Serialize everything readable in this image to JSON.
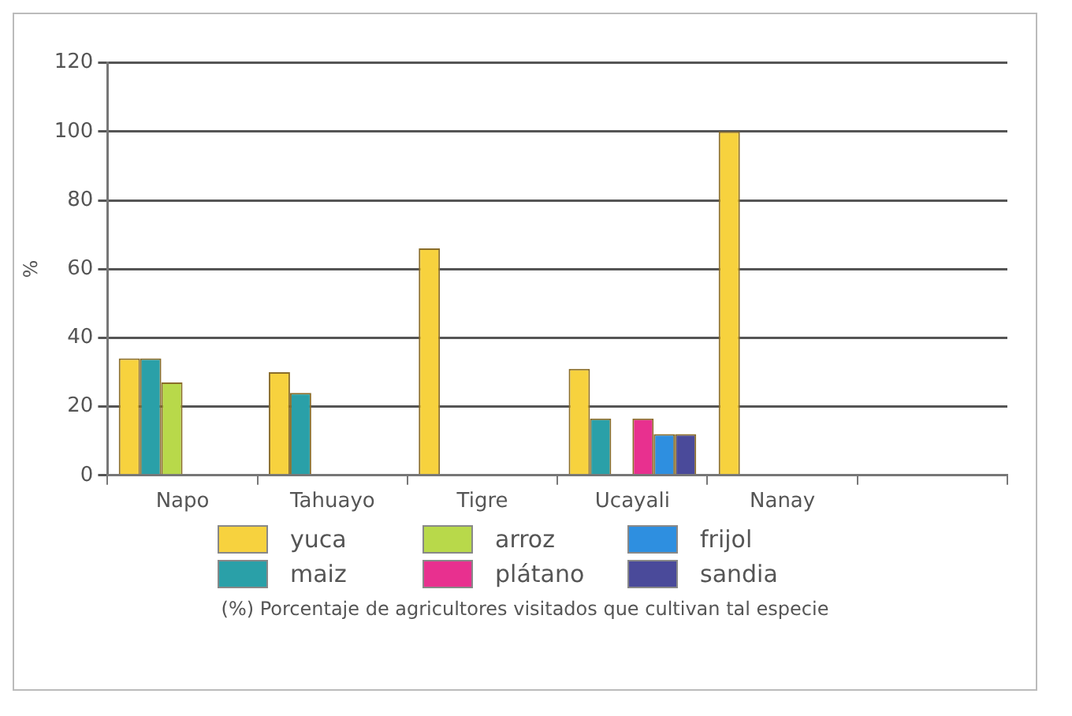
{
  "chart_data": {
    "type": "bar",
    "categories": [
      "Napo",
      "Tahuayo",
      "Tigre",
      "Ucayali",
      "Nanay",
      null
    ],
    "series": [
      {
        "name": "yuca",
        "color": "#f7d23e",
        "values": [
          34,
          30,
          66,
          31,
          100,
          null
        ]
      },
      {
        "name": "maiz",
        "color": "#2aa0a8",
        "values": [
          34,
          24,
          null,
          16.5,
          null,
          null
        ]
      },
      {
        "name": "arroz",
        "color": "#b8d94a",
        "values": [
          27,
          null,
          null,
          null,
          null,
          null
        ]
      },
      {
        "name": "plátano",
        "color": "#e8308f",
        "values": [
          null,
          null,
          null,
          16.5,
          null,
          null
        ]
      },
      {
        "name": "frijol",
        "color": "#2e8fe0",
        "values": [
          null,
          null,
          null,
          12,
          null,
          null
        ]
      },
      {
        "name": "sandia",
        "color": "#4a4a9a",
        "values": [
          null,
          null,
          null,
          12,
          null,
          null
        ]
      }
    ],
    "ylabel": "%",
    "ylim": [
      0,
      120
    ],
    "yticks": [
      0,
      20,
      40,
      60,
      80,
      100,
      120
    ],
    "grid": "y",
    "legend": "bottom",
    "annotations": [
      "(%) Porcentaje de agricultores visitados que cultivan tal especie"
    ]
  }
}
